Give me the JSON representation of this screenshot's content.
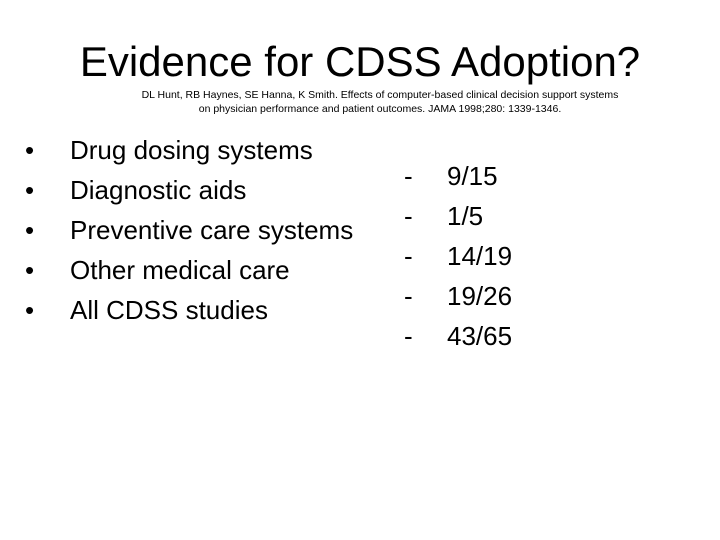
{
  "slide": {
    "title": "Evidence for CDSS Adoption?",
    "citation_lines": [
      "DL Hunt, RB Haynes, SE Hanna, K Smith. Effects of computer-based clinical decision support systems",
      "on physician performance and patient outcomes. JAMA 1998;280: 1339-1346."
    ],
    "bullet_char": "•",
    "bullets": [
      "Drug dosing systems",
      "Diagnostic aids",
      "Preventive care systems",
      "Other medical care",
      "All CDSS studies"
    ],
    "dash_char": "-",
    "results": [
      "9/15",
      "1/5",
      "14/19",
      "19/26",
      "43/65"
    ]
  }
}
